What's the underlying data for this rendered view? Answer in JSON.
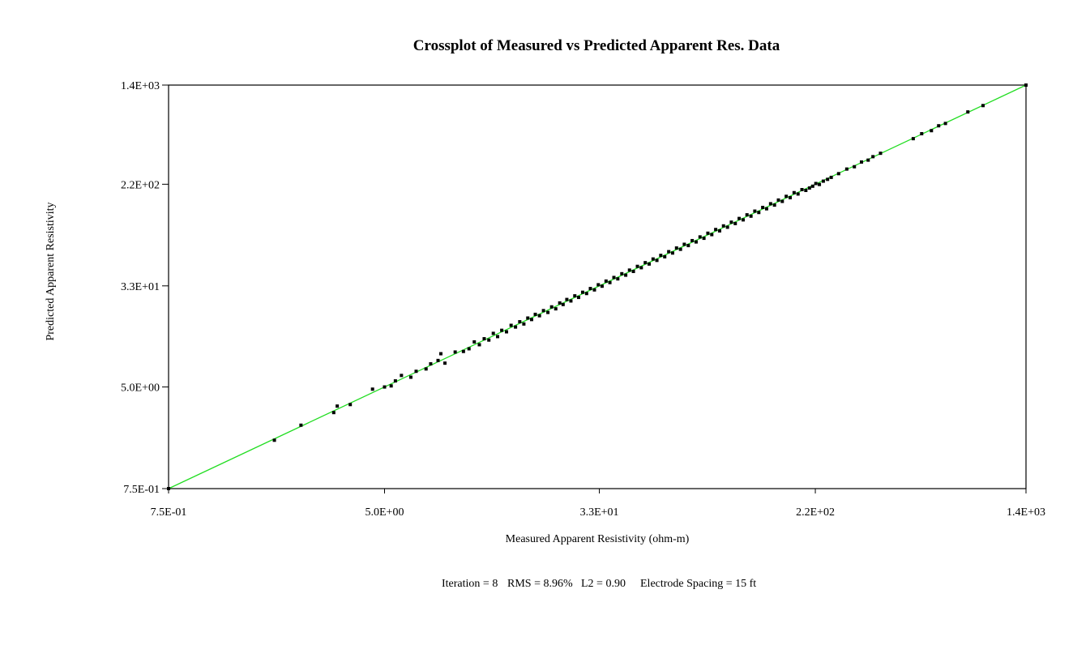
{
  "chart_data": {
    "type": "scatter",
    "title": "Crossplot of Measured vs Predicted Apparent Res. Data",
    "xlabel": "Measured Apparent Resistivity (ohm-m)",
    "ylabel": "Predicted Apparent Resistivity",
    "x_scale": "log",
    "y_scale": "log",
    "xlim": [
      0.75,
      1400
    ],
    "ylim": [
      0.75,
      1400
    ],
    "x_ticks": [
      {
        "value": 0.75,
        "label": "7.5E-01"
      },
      {
        "value": 5.0,
        "label": "5.0E+00"
      },
      {
        "value": 33,
        "label": "3.3E+01"
      },
      {
        "value": 220,
        "label": "2.2E+02"
      },
      {
        "value": 1400,
        "label": "1.4E+03"
      }
    ],
    "y_ticks": [
      {
        "value": 0.75,
        "label": "7.5E-01"
      },
      {
        "value": 5.0,
        "label": "5.0E+00"
      },
      {
        "value": 33,
        "label": "3.3E+01"
      },
      {
        "value": 220,
        "label": "2.2E+02"
      },
      {
        "value": 1400,
        "label": "1.4E+03"
      }
    ],
    "grid": false,
    "legend": "none",
    "fit_line": {
      "name": "",
      "color": "#22dd22",
      "from": [
        0.75,
        0.75
      ],
      "to": [
        1400,
        1400
      ]
    },
    "marker_color": "#000000",
    "series": [
      {
        "name": "",
        "points": [
          [
            0.75,
            0.75
          ],
          [
            1.9,
            1.85
          ],
          [
            2.4,
            2.45
          ],
          [
            3.2,
            3.1
          ],
          [
            3.3,
            3.5
          ],
          [
            3.7,
            3.6
          ],
          [
            4.5,
            4.8
          ],
          [
            5.0,
            5.0
          ],
          [
            5.3,
            5.1
          ],
          [
            5.5,
            5.6
          ],
          [
            5.8,
            6.2
          ],
          [
            6.3,
            6.0
          ],
          [
            6.6,
            6.7
          ],
          [
            7.2,
            7.0
          ],
          [
            7.5,
            7.7
          ],
          [
            8.0,
            8.2
          ],
          [
            8.5,
            7.8
          ],
          [
            8.2,
            9.3
          ],
          [
            9.3,
            9.6
          ],
          [
            10.0,
            9.7
          ],
          [
            10.5,
            10.2
          ],
          [
            11.0,
            11.6
          ],
          [
            11.5,
            11.0
          ],
          [
            12.0,
            12.3
          ],
          [
            12.5,
            12.0
          ],
          [
            13.0,
            13.6
          ],
          [
            13.5,
            12.8
          ],
          [
            14.0,
            14.4
          ],
          [
            14.6,
            14.0
          ],
          [
            15.2,
            15.8
          ],
          [
            15.8,
            15.3
          ],
          [
            16.4,
            16.9
          ],
          [
            17.0,
            16.2
          ],
          [
            17.6,
            18.1
          ],
          [
            18.2,
            17.6
          ],
          [
            18.8,
            19.4
          ],
          [
            19.5,
            18.9
          ],
          [
            20.2,
            20.8
          ],
          [
            21.0,
            20.1
          ],
          [
            21.7,
            22.3
          ],
          [
            22.5,
            21.5
          ],
          [
            23.3,
            24.0
          ],
          [
            24.0,
            23.3
          ],
          [
            24.8,
            25.6
          ],
          [
            25.7,
            24.9
          ],
          [
            26.6,
            27.4
          ],
          [
            27.5,
            26.6
          ],
          [
            28.5,
            29.3
          ],
          [
            29.5,
            28.6
          ],
          [
            30.5,
            31.4
          ],
          [
            31.6,
            30.6
          ],
          [
            32.7,
            33.7
          ],
          [
            33.8,
            32.8
          ],
          [
            35.0,
            36.1
          ],
          [
            36.2,
            35.1
          ],
          [
            37.5,
            38.6
          ],
          [
            38.8,
            37.6
          ],
          [
            40.2,
            41.4
          ],
          [
            41.6,
            40.3
          ],
          [
            43.0,
            44.3
          ],
          [
            44.5,
            43.2
          ],
          [
            46.1,
            47.5
          ],
          [
            47.7,
            46.3
          ],
          [
            49.4,
            50.9
          ],
          [
            51.1,
            49.6
          ],
          [
            52.9,
            54.5
          ],
          [
            54.7,
            53.1
          ],
          [
            56.6,
            58.3
          ],
          [
            58.6,
            56.8
          ],
          [
            60.7,
            62.5
          ],
          [
            62.8,
            60.9
          ],
          [
            65.0,
            66.9
          ],
          [
            67.3,
            65.3
          ],
          [
            69.6,
            71.7
          ],
          [
            72.1,
            70.0
          ],
          [
            74.6,
            76.8
          ],
          [
            77.2,
            74.9
          ],
          [
            79.9,
            82.3
          ],
          [
            82.7,
            80.2
          ],
          [
            85.6,
            88.2
          ],
          [
            88.6,
            85.9
          ],
          [
            91.7,
            94.5
          ],
          [
            94.9,
            92.1
          ],
          [
            98.2,
            101.1
          ],
          [
            101.7,
            98.6
          ],
          [
            105.2,
            108.4
          ],
          [
            108.9,
            105.6
          ],
          [
            112.7,
            116.1
          ],
          [
            116.7,
            113.1
          ],
          [
            120.7,
            124.3
          ],
          [
            125.0,
            121.2
          ],
          [
            129.3,
            133.2
          ],
          [
            133.9,
            129.8
          ],
          [
            138.6,
            142.7
          ],
          [
            143.4,
            139.1
          ],
          [
            148.5,
            152.9
          ],
          [
            153.7,
            149.0
          ],
          [
            159.1,
            163.8
          ],
          [
            164.6,
            159.7
          ],
          [
            170.4,
            175.5
          ],
          [
            176.4,
            171.1
          ],
          [
            182.6,
            188.0
          ],
          [
            189.0,
            183.3
          ],
          [
            195.6,
            199.0
          ],
          [
            202.4,
            196.0
          ],
          [
            209.0,
            205.0
          ],
          [
            215.0,
            212.0
          ],
          [
            221.0,
            223.0
          ],
          [
            228.0,
            219.0
          ],
          [
            236.0,
            233.0
          ],
          [
            245.0,
            241.0
          ],
          [
            253.0,
            250.0
          ],
          [
            270.0,
            268.0
          ],
          [
            290.0,
            292.0
          ],
          [
            310.0,
            305.0
          ],
          [
            330.0,
            333.0
          ],
          [
            350.0,
            345.0
          ],
          [
            365.0,
            368.0
          ],
          [
            390.0,
            392.0
          ],
          [
            520.0,
            515.0
          ],
          [
            560.0,
            565.0
          ],
          [
            610.0,
            598.0
          ],
          [
            650.0,
            655.0
          ],
          [
            690.0,
            684.0
          ],
          [
            840.0,
            848.0
          ],
          [
            960.0,
            955.0
          ],
          [
            1400.0,
            1400.0
          ]
        ]
      }
    ]
  },
  "footer": {
    "iteration": "Iteration = 8",
    "rms": "RMS = 8.96%",
    "l2": "L2 = 0.90",
    "spacing": "Electrode Spacing = 15 ft"
  }
}
